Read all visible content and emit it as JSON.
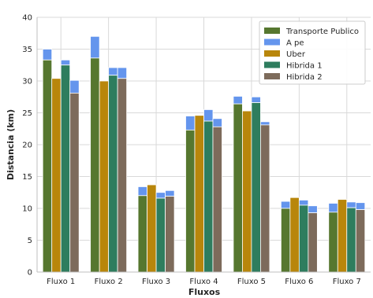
{
  "chart_data": {
    "type": "bar",
    "stacked_top_series": "A pe",
    "categories": [
      "Fluxo 1",
      "Fluxo 2",
      "Fluxo 3",
      "Fluxo 4",
      "Fluxo 5",
      "Fluxo 6",
      "Fluxo 7"
    ],
    "series": [
      {
        "name": "Transporte Publico",
        "color": "#56772f",
        "values": [
          33.3,
          33.6,
          12.0,
          22.3,
          26.4,
          10.0,
          9.4
        ],
        "top": [
          35.0,
          37.0,
          13.4,
          24.5,
          27.6,
          11.1,
          10.8
        ]
      },
      {
        "name": "Uber",
        "color": "#b8860b",
        "values": [
          30.4,
          30.0,
          13.7,
          24.6,
          25.3,
          11.7,
          11.4
        ],
        "top": [
          30.4,
          30.0,
          13.7,
          24.6,
          25.3,
          11.7,
          11.4
        ]
      },
      {
        "name": "Hibrida 1",
        "color": "#2e7d5e",
        "values": [
          32.5,
          30.9,
          11.6,
          23.7,
          26.6,
          10.5,
          10.1
        ],
        "top": [
          33.3,
          32.1,
          12.5,
          25.5,
          27.5,
          11.3,
          11.0
        ]
      },
      {
        "name": "Hibrida 2",
        "color": "#7d6b5b",
        "values": [
          28.1,
          30.4,
          11.9,
          22.8,
          23.1,
          9.3,
          9.8
        ],
        "top": [
          30.1,
          32.1,
          12.8,
          24.1,
          23.6,
          10.4,
          10.9
        ]
      }
    ],
    "legend": [
      {
        "name": "Transporte Publico",
        "color": "#56772f"
      },
      {
        "name": "A pe",
        "color": "#6495ed"
      },
      {
        "name": "Uber",
        "color": "#b8860b"
      },
      {
        "name": "Hibrida 1",
        "color": "#2e7d5e"
      },
      {
        "name": "Hibrida 2",
        "color": "#7d6b5b"
      }
    ],
    "xlabel": "Fluxos",
    "ylabel": "Distancia (km)",
    "ylim": [
      0,
      40
    ],
    "yticks": [
      0,
      5,
      10,
      15,
      20,
      25,
      30,
      35,
      40
    ],
    "grid": true,
    "legend_position": "top-right",
    "walk_color": "#6495ed"
  }
}
